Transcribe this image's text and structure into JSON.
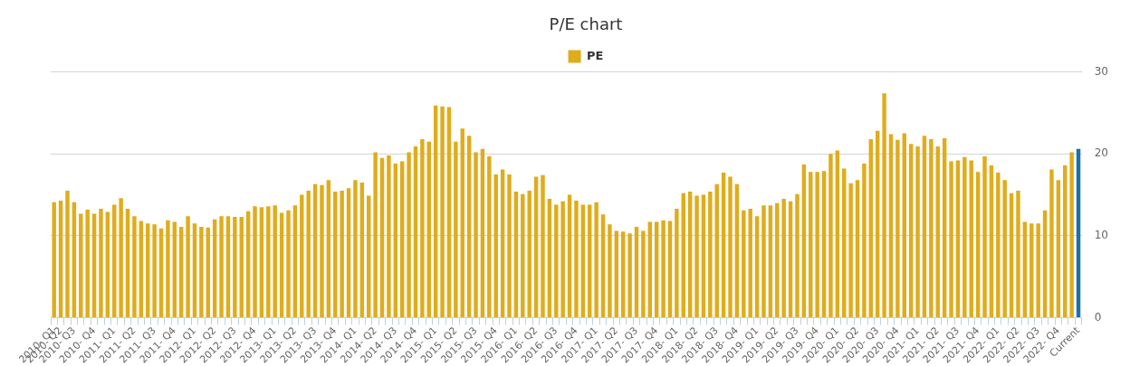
{
  "chart_data": {
    "type": "bar",
    "title": "P/E chart",
    "categories": [
      "2010- Q1",
      "2010- Q2",
      null,
      "2010- Q3",
      null,
      null,
      "2010- Q4",
      null,
      null,
      "2011- Q1",
      null,
      null,
      "2011- Q2",
      null,
      null,
      "2011- Q3",
      null,
      null,
      "2011- Q4",
      null,
      null,
      "2012- Q1",
      null,
      null,
      "2012- Q2",
      null,
      null,
      "2012- Q3",
      null,
      null,
      "2012- Q4",
      null,
      null,
      "2013- Q1",
      null,
      null,
      "2013- Q2",
      null,
      null,
      "2013- Q3",
      null,
      null,
      "2013- Q4",
      null,
      null,
      "2014- Q1",
      null,
      null,
      "2014- Q2",
      null,
      null,
      "2014- Q3",
      null,
      null,
      "2014- Q4",
      null,
      null,
      "2015- Q1",
      null,
      null,
      "2015- Q2",
      null,
      null,
      "2015- Q3",
      null,
      null,
      "2015- Q4",
      null,
      null,
      "2016- Q1",
      null,
      null,
      "2016- Q2",
      null,
      null,
      "2016- Q3",
      null,
      null,
      "2016- Q4",
      null,
      null,
      "2017- Q1",
      null,
      null,
      "2017- Q2",
      null,
      null,
      "2017- Q3",
      null,
      null,
      "2017- Q4",
      null,
      null,
      "2018- Q1",
      null,
      null,
      "2018- Q2",
      null,
      null,
      "2018- Q3",
      null,
      null,
      "2018- Q4",
      null,
      null,
      "2019- Q1",
      null,
      null,
      "2019- Q2",
      null,
      null,
      "2019- Q3",
      null,
      null,
      "2019- Q4",
      null,
      null,
      "2020- Q1",
      null,
      null,
      "2020- Q2",
      null,
      null,
      "2020- Q3",
      null,
      null,
      "2020- Q4",
      null,
      null,
      "2021- Q1",
      null,
      null,
      "2021- Q2",
      null,
      null,
      "2021- Q3",
      null,
      null,
      "2021- Q4",
      null,
      null,
      "2022- Q1",
      null,
      null,
      "2022- Q2",
      null,
      null,
      "2022- Q3",
      null,
      null,
      "2022- Q4",
      null,
      null,
      "Current"
    ],
    "series": [
      {
        "name": "PE",
        "color": "#e0ac1c",
        "values": [
          14.1,
          14.3,
          15.5,
          14.1,
          12.7,
          13.2,
          12.7,
          13.3,
          12.9,
          13.8,
          14.6,
          13.3,
          12.4,
          11.8,
          11.5,
          11.4,
          10.9,
          11.9,
          11.7,
          11.1,
          12.4,
          11.5,
          11.1,
          11.0,
          12.0,
          12.4,
          12.4,
          12.3,
          12.3,
          13.0,
          13.6,
          13.5,
          13.6,
          13.7,
          12.8,
          13.1,
          13.7,
          15.0,
          15.5,
          16.3,
          16.2,
          16.8,
          15.4,
          15.5,
          15.8,
          16.8,
          16.5,
          14.9,
          20.2,
          19.5,
          19.8,
          18.8,
          19.1,
          20.2,
          20.9,
          21.8,
          21.5,
          25.9,
          25.8,
          25.7,
          21.5,
          23.1,
          22.2,
          20.2,
          20.6,
          19.7,
          17.5,
          18.1,
          17.5,
          15.4,
          15.1,
          15.5,
          17.2,
          17.4,
          14.5,
          13.8,
          14.2,
          15.0,
          14.3,
          13.8,
          13.8,
          14.1,
          12.6,
          11.4,
          10.6,
          10.5,
          10.3,
          11.1,
          10.6,
          11.7,
          11.7,
          11.9,
          11.8,
          13.3,
          15.2,
          15.4,
          14.9,
          15.0,
          15.4,
          16.3,
          17.7,
          17.2,
          16.3,
          13.1,
          13.3,
          12.4,
          13.7,
          13.7,
          14.0,
          14.5,
          14.2,
          15.1,
          18.7,
          17.8,
          17.8,
          17.9,
          20.0,
          20.4,
          18.2,
          16.4,
          16.8,
          18.8,
          21.8,
          22.8,
          27.4,
          22.4,
          21.7,
          22.5,
          21.2,
          20.9,
          22.2,
          21.8,
          20.9,
          21.9,
          19.1,
          19.2,
          19.6,
          19.2,
          17.8,
          19.7,
          18.6,
          17.7,
          16.8,
          15.2,
          15.5,
          11.7,
          11.5,
          11.5,
          13.1,
          18.1,
          16.8,
          18.6,
          20.2,
          20.6
        ],
        "colors": [
          "#e0ac1c",
          "#e0ac1c",
          "#e0ac1c",
          "#e0ac1c",
          "#e0ac1c",
          "#e0ac1c",
          "#e0ac1c",
          "#e0ac1c",
          "#e0ac1c",
          "#e0ac1c",
          "#e0ac1c",
          "#e0ac1c",
          "#e0ac1c",
          "#e0ac1c",
          "#e0ac1c",
          "#e0ac1c",
          "#e0ac1c",
          "#e0ac1c",
          "#e0ac1c",
          "#e0ac1c",
          "#e0ac1c",
          "#e0ac1c",
          "#e0ac1c",
          "#e0ac1c",
          "#e0ac1c",
          "#e0ac1c",
          "#e0ac1c",
          "#e0ac1c",
          "#e0ac1c",
          "#e0ac1c",
          "#e0ac1c",
          "#e0ac1c",
          "#e0ac1c",
          "#e0ac1c",
          "#e0ac1c",
          "#e0ac1c",
          "#e0ac1c",
          "#e0ac1c",
          "#e0ac1c",
          "#e0ac1c",
          "#e0ac1c",
          "#e0ac1c",
          "#e0ac1c",
          "#e0ac1c",
          "#e0ac1c",
          "#e0ac1c",
          "#e0ac1c",
          "#e0ac1c",
          "#e0ac1c",
          "#e0ac1c",
          "#e0ac1c",
          "#e0ac1c",
          "#e0ac1c",
          "#e0ac1c",
          "#e0ac1c",
          "#e0ac1c",
          "#e0ac1c",
          "#e0ac1c",
          "#e0ac1c",
          "#e0ac1c",
          "#e0ac1c",
          "#e0ac1c",
          "#e0ac1c",
          "#e0ac1c",
          "#e0ac1c",
          "#e0ac1c",
          "#e0ac1c",
          "#e0ac1c",
          "#e0ac1c",
          "#e0ac1c",
          "#e0ac1c",
          "#e0ac1c",
          "#e0ac1c",
          "#e0ac1c",
          "#e0ac1c",
          "#e0ac1c",
          "#e0ac1c",
          "#e0ac1c",
          "#e0ac1c",
          "#e0ac1c",
          "#e0ac1c",
          "#e0ac1c",
          "#e0ac1c",
          "#e0ac1c",
          "#e0ac1c",
          "#e0ac1c",
          "#e0ac1c",
          "#e0ac1c",
          "#e0ac1c",
          "#e0ac1c",
          "#e0ac1c",
          "#e0ac1c",
          "#e0ac1c",
          "#e0ac1c",
          "#e0ac1c",
          "#e0ac1c",
          "#e0ac1c",
          "#e0ac1c",
          "#e0ac1c",
          "#e0ac1c",
          "#e0ac1c",
          "#e0ac1c",
          "#e0ac1c",
          "#e0ac1c",
          "#e0ac1c",
          "#e0ac1c",
          "#e0ac1c",
          "#e0ac1c",
          "#e0ac1c",
          "#e0ac1c",
          "#e0ac1c",
          "#e0ac1c",
          "#e0ac1c",
          "#e0ac1c",
          "#e0ac1c",
          "#e0ac1c",
          "#e0ac1c",
          "#e0ac1c",
          "#e0ac1c",
          "#e0ac1c",
          "#e0ac1c",
          "#e0ac1c",
          "#e0ac1c",
          "#e0ac1c",
          "#e0ac1c",
          "#e0ac1c",
          "#e0ac1c",
          "#e0ac1c",
          "#e0ac1c",
          "#e0ac1c",
          "#e0ac1c",
          "#e0ac1c",
          "#e0ac1c",
          "#e0ac1c",
          "#e0ac1c",
          "#e0ac1c",
          "#e0ac1c",
          "#e0ac1c",
          "#e0ac1c",
          "#e0ac1c",
          "#e0ac1c",
          "#e0ac1c",
          "#e0ac1c",
          "#e0ac1c",
          "#e0ac1c",
          "#e0ac1c",
          "#e0ac1c",
          "#e0ac1c",
          "#e0ac1c",
          "#e0ac1c",
          "#e0ac1c",
          "#e0ac1c",
          "#e0ac1c",
          "#1a70b0"
        ]
      }
    ],
    "ylim": [
      0,
      30
    ],
    "yticks": [
      0,
      10,
      20,
      30
    ],
    "grid": "y",
    "legend": "top"
  }
}
